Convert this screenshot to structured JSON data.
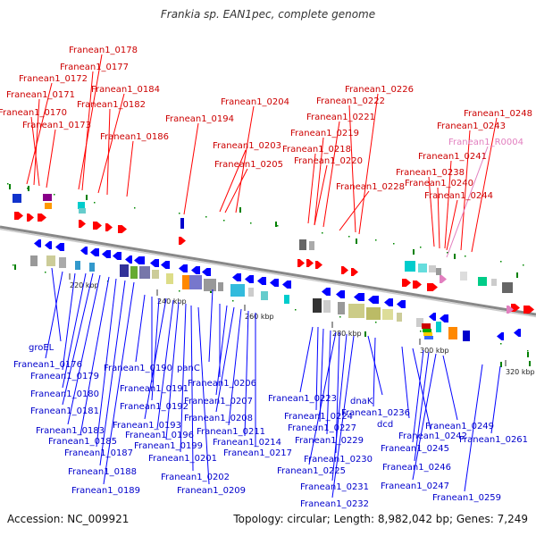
{
  "title": "Frankia sp. EAN1pec, complete genome",
  "accession": "Accession: NC_009921",
  "topology": "Topology: circular; Length: 8,982,042 bp; Genes: 7,249",
  "colors": {
    "forward_gene": "#ff0000",
    "reverse_gene": "#0000ff",
    "rna_gene": "#e27fbf",
    "backbone": "#888888",
    "tick_marker": "#008000"
  },
  "ticks": [
    "220 kbp",
    "240 kbp",
    "260 kbp",
    "280 kbp",
    "300 kbp",
    "320 kbp"
  ],
  "top_labels": [
    {
      "text": "Franean1_0178",
      "type": "cds"
    },
    {
      "text": "Franean1_0177",
      "type": "cds"
    },
    {
      "text": "Franean1_0172",
      "type": "cds"
    },
    {
      "text": "Franean1_0184",
      "type": "cds"
    },
    {
      "text": "Franean1_0171",
      "type": "cds"
    },
    {
      "text": "Franean1_0182",
      "type": "cds"
    },
    {
      "text": "Franean1_0170",
      "type": "cds"
    },
    {
      "text": "Franean1_0173",
      "type": "cds"
    },
    {
      "text": "Franean1_0186",
      "type": "cds"
    },
    {
      "text": "Franean1_0194",
      "type": "cds"
    },
    {
      "text": "Franean1_0204",
      "type": "cds"
    },
    {
      "text": "Franean1_0203",
      "type": "cds"
    },
    {
      "text": "Franean1_0205",
      "type": "cds"
    },
    {
      "text": "Franean1_0226",
      "type": "cds"
    },
    {
      "text": "Franean1_0222",
      "type": "cds"
    },
    {
      "text": "Franean1_0221",
      "type": "cds"
    },
    {
      "text": "Franean1_0219",
      "type": "cds"
    },
    {
      "text": "Franean1_0218",
      "type": "cds"
    },
    {
      "text": "Franean1_0220",
      "type": "cds"
    },
    {
      "text": "Franean1_0228",
      "type": "cds"
    },
    {
      "text": "Franean1_0248",
      "type": "cds"
    },
    {
      "text": "Franean1_0243",
      "type": "cds"
    },
    {
      "text": "Franean1_R0004",
      "type": "rna"
    },
    {
      "text": "Franean1_0241",
      "type": "cds"
    },
    {
      "text": "Franean1_0238",
      "type": "cds"
    },
    {
      "text": "Franean1_0240",
      "type": "cds"
    },
    {
      "text": "Franean1_0244",
      "type": "cds"
    }
  ],
  "bottom_labels": [
    "groEL",
    "Franean1_0176",
    "Franean1_0179",
    "Franean1_0180",
    "Franean1_0181",
    "Franean1_0183",
    "Franean1_0185",
    "Franean1_0187",
    "Franean1_0188",
    "Franean1_0189",
    "Franean1_0190",
    "Franean1_0191",
    "Franean1_0192",
    "Franean1_0193",
    "Franean1_0196",
    "Franean1_0199",
    "Franean1_0201",
    "Franean1_0202",
    "Franean1_0209",
    "panC",
    "Franean1_0206",
    "Franean1_0207",
    "Franean1_0208",
    "Franean1_0211",
    "Franean1_0214",
    "Franean1_0217",
    "Franean1_0223",
    "Franean1_0224",
    "Franean1_0227",
    "Franean1_0229",
    "Franean1_0230",
    "Franean1_0225",
    "Franean1_0231",
    "Franean1_0232",
    "dnaK",
    "Franean1_0236",
    "dcd",
    "Franean1_0242",
    "Franean1_0245",
    "Franean1_0246",
    "Franean1_0247",
    "Franean1_0249",
    "Franean1_0261",
    "Franean1_0259"
  ]
}
